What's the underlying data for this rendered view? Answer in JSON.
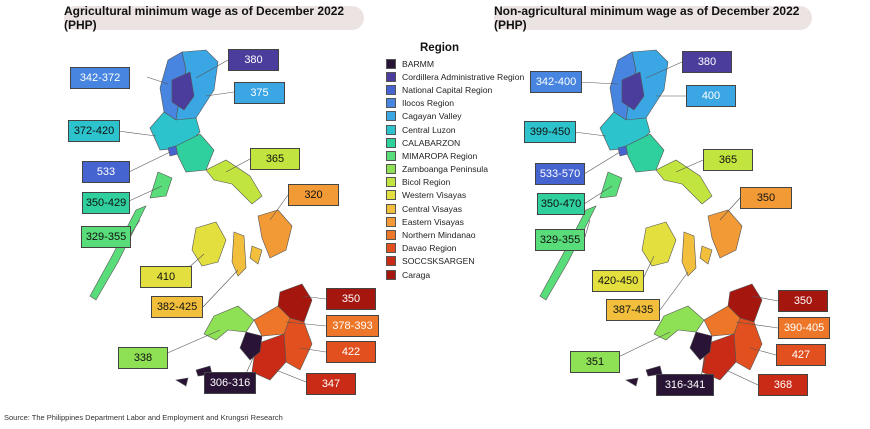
{
  "left_title": "Agricultural minimum wage as of December 2022 (PHP)",
  "right_title": "Non-agricultural minimum wage as of December 2022 (PHP)",
  "legend": {
    "title": "Region",
    "items": [
      {
        "label": "BARMM",
        "color": "#2a1436"
      },
      {
        "label": "Cordillera Administrative Region",
        "color": "#4b3d9c"
      },
      {
        "label": "National Capital Region",
        "color": "#4664d0"
      },
      {
        "label": "Ilocos Region",
        "color": "#4785e0"
      },
      {
        "label": "Cagayan Valley",
        "color": "#3aa6e4"
      },
      {
        "label": "Central Luzon",
        "color": "#2cc3cc"
      },
      {
        "label": "CALABARZON",
        "color": "#2fcf9e"
      },
      {
        "label": "MIMAROPA Region",
        "color": "#59dc7a"
      },
      {
        "label": "Zamboanga Peninsula",
        "color": "#8ee055"
      },
      {
        "label": "Bicol Region",
        "color": "#c2e43e"
      },
      {
        "label": "Western Visayas",
        "color": "#e3df3e"
      },
      {
        "label": "Central Visayas",
        "color": "#f1bf3c"
      },
      {
        "label": "Eastern Visayas",
        "color": "#f29a36"
      },
      {
        "label": "Northern Mindanao",
        "color": "#ee7628"
      },
      {
        "label": "Davao Region",
        "color": "#e25020"
      },
      {
        "label": "SOCCSKSARGEN",
        "color": "#c92b16"
      },
      {
        "label": "Caraga",
        "color": "#a5160f"
      }
    ]
  },
  "agricultural": {
    "car": "380",
    "ilocos": "342-372",
    "cagayan": "375",
    "central_luzon": "372-420",
    "ncr": "533",
    "bicol": "365",
    "calabarzon": "350-429",
    "eastern_visayas": "320",
    "mimaropa": "329-355",
    "western_visayas": "410",
    "central_visayas": "382-425",
    "caraga": "350",
    "northern_mindanao": "378-393",
    "zamboanga": "338",
    "davao": "422",
    "barmm": "306-316",
    "soccsksargen": "347"
  },
  "non_agricultural": {
    "car": "380",
    "ilocos": "342-400",
    "cagayan": "400",
    "central_luzon": "399-450",
    "ncr": "533-570",
    "bicol": "365",
    "calabarzon": "350-470",
    "eastern_visayas": "350",
    "mimaropa": "329-355",
    "western_visayas": "420-450",
    "central_visayas": "387-435",
    "caraga": "350",
    "northern_mindanao": "390-405",
    "zamboanga": "351",
    "davao": "427",
    "barmm": "316-341",
    "soccsksargen": "368"
  },
  "source": "Source:  The Philippines Department Labor and Employment and Krungsri Research"
}
